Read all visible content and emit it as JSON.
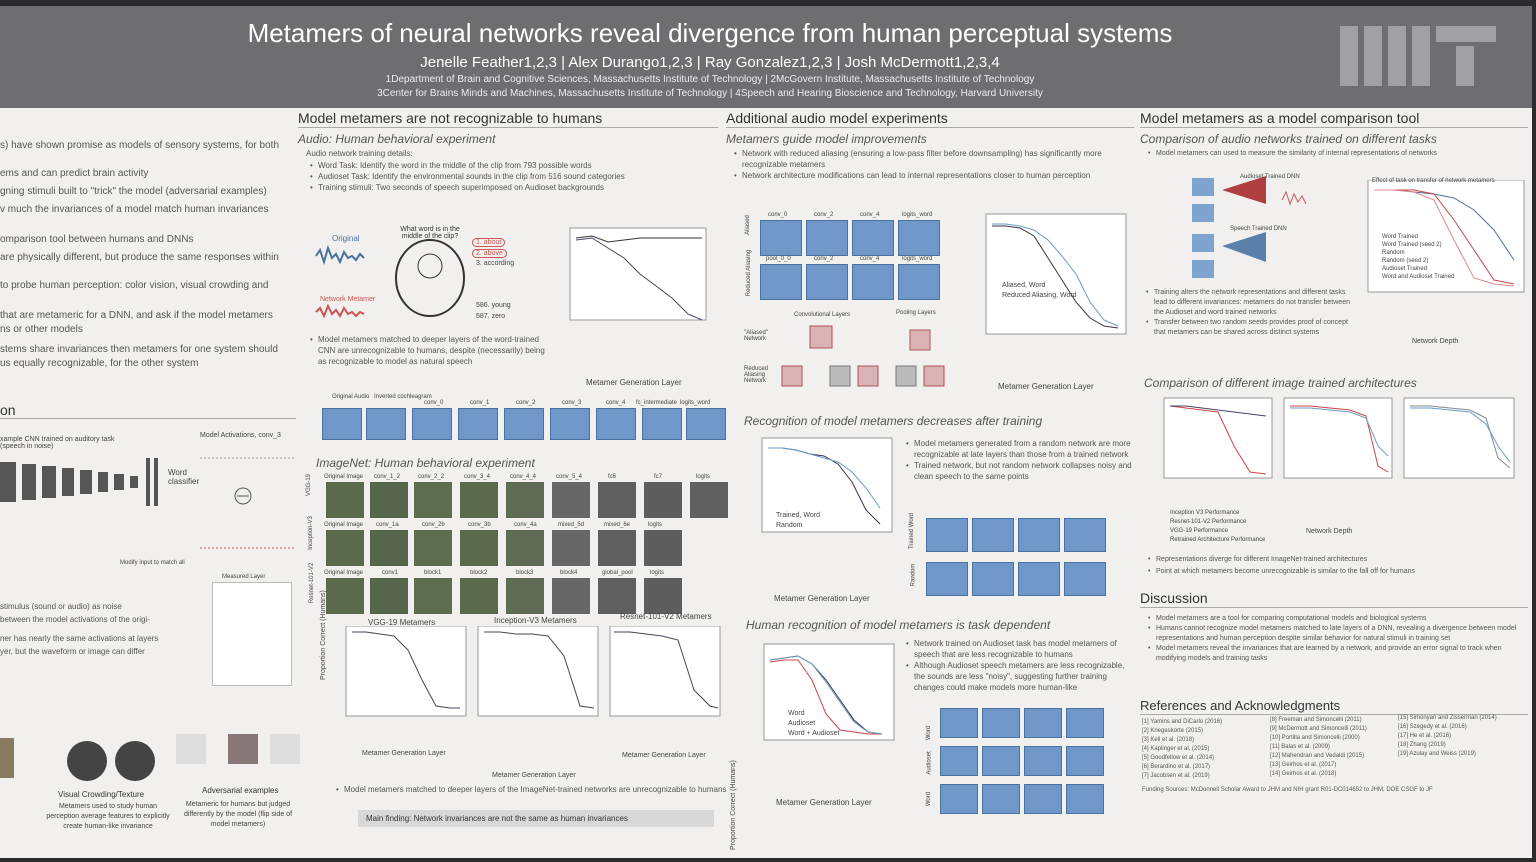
{
  "header": {
    "title": "Metamers of neural networks reveal divergence from human perceptual systems",
    "authors": "Jenelle Feather1,2,3 | Alex Durango1,2,3 | Ray Gonzalez1,2,3 | Josh McDermott1,2,3,4",
    "affil_1": "1Department of Brain and Cognitive Sciences, Massachusetts Institute of Technology | 2McGovern Institute, Massachusetts Institute of Technology",
    "affil_2": "3Center for Brains Minds and Machines, Massachusetts Institute of Technology | 4Speech and Hearing Bioscience and Technology, Harvard University"
  },
  "col1": {
    "intro": [
      "s) have shown promise as models of sensory systems, for both",
      "ems and can predict brain activity",
      "gning stimuli built to \"trick\" the model (adversarial examples)",
      "v much the invariances of a model match human invariances",
      "omparison tool between humans and DNNs",
      "are physically different, but produce the same responses within",
      "to probe human perception: color vision, visual crowding and",
      "that are metameric for a DNN, and ask if the model metamers",
      "ns or other models",
      "stems share invariances then metamers for one system should",
      "us equally recognizable, for the other system"
    ],
    "section": "on",
    "diagram_caption": "xample CNN trained on auditory task (speech in noise)",
    "model_activations": "Model Activations, conv_3",
    "word_classifier": "Word classifier",
    "modify_input": "Modify input to match all",
    "measured_layer": "Measured Layer",
    "method_text": [
      "stimulus (sound or audio) as noise",
      "between the model activations of the origi-",
      "ner has nearly the same activations at layers",
      "yer, but the waveform or image can differ"
    ],
    "bottom_titles": [
      "Visual Crowding/Texture",
      "Adversarial examples"
    ],
    "bottom_texts": [
      "Metamers used to study human perception average features to explicitly create human-like invariance",
      "Metameric for humans but judged differently by the model (flip side of model metamers)"
    ]
  },
  "col2": {
    "heading": "Model metamers are not recognizable to humans",
    "audio_sub": "Audio: Human behavioral experiment",
    "training_label": "Audio network training details:",
    "training_bullets": [
      "Word Task: Identify the word in the middle of the clip from 793 possible words",
      "Audioset Task: Identify the environmental sounds in the clip from 516 sound categories",
      "Training stimuli: Two seconds of speech superimposed on Audioset backgrounds"
    ],
    "original": "Original",
    "network_metamer": "Network Metamer",
    "question": "What word is in the middle of the clip?",
    "choices": [
      "1. about",
      "2. above",
      "3. according",
      "586. young",
      "587. zero"
    ],
    "audio_result": "Model metamers matched to deeper layers of the word-trained CNN are unrecognizable to humans, despite (necessarily) being as recognizable to model as natural speech",
    "audio_layers": [
      "Original Audio",
      "Inverted cochleagram",
      "conv_0",
      "conv_1",
      "conv_2",
      "conv_3",
      "conv_4",
      "fc_intermediate",
      "logits_word"
    ],
    "imagenet_sub": "ImageNet: Human behavioral experiment",
    "net_labels": [
      "VGG-19",
      "Inception-V3",
      "Resnet-101-V2"
    ],
    "vgg_layers": [
      "Original Image",
      "conv_1_2",
      "conv_2_2",
      "conv_3_4",
      "conv_4_4",
      "conv_5_4",
      "fc6",
      "fc7",
      "logits"
    ],
    "inc_layers": [
      "Original Image",
      "conv_1a",
      "conv_2b",
      "conv_3b",
      "conv_4a",
      "mixed_5d",
      "mixed_6e",
      "logits"
    ],
    "res_layers": [
      "Original Image",
      "conv1",
      "block1",
      "block2",
      "block3",
      "block4",
      "global_pool",
      "logits"
    ],
    "plot_titles": [
      "VGG-19 Metamers",
      "Inception-V3 Metamers",
      "Resnet-101-V2 Metamers"
    ],
    "ylabel": "Proportion Correct (Humans)",
    "xlabel": "Metamer Generation Layer",
    "image_result": "Model metamers matched to deeper layers of the ImageNet-trained networks are unrecognizable to humans",
    "main_finding": "Main finding: Network invariances are not the same as human invariances"
  },
  "col3": {
    "heading": "Additional audio model experiments",
    "sub1": "Metamers guide model improvements",
    "bullets1": [
      "Network with reduced aliasing (ensuring a low-pass filter before downsampling) has significantly more recognizable metamers",
      "Network architecture modifications can lead to internal representations closer to human perception"
    ],
    "aliased_rows": [
      "Aliased",
      "Reduced Aliasing"
    ],
    "aliased_cols": [
      "conv_0",
      "conv_2",
      "conv_4",
      "logits_word"
    ],
    "pool_cols": [
      "pool_0_0",
      "conv_2",
      "conv_4",
      "logits_word"
    ],
    "conv_layers": "Convolutional Layers",
    "pooling_layers": "Pooling Layers",
    "aliased_net": "\"Aliased\" Network",
    "reduced_net": "Reduced Aliasing Network",
    "legend1": [
      "Aliased, Word",
      "Reduced Aliasing, Word"
    ],
    "sub2": "Recognition of model metamers decreases after training",
    "bullets2": [
      "Model metamers generated from a random network are more recognizable at late layers than those from a trained network",
      "Trained network, but not random network collapses noisy and clean speech to the same points"
    ],
    "legend2": [
      "Trained, Word",
      "Random"
    ],
    "row_labels2": [
      "Trained Word",
      "Random"
    ],
    "sub3": "Human recognition of model metamers is task dependent",
    "bullets3": [
      "Network trained on Audioset task has model metamers of speech that are less recognizable to humans",
      "Although Audioset speech metamers are less recognizable, the sounds are less \"noisy\", suggesting further training changes could make models more human-like"
    ],
    "legend3": [
      "Word",
      "Audioset",
      "Word + Audioset"
    ],
    "row_labels3": [
      "Word",
      "Audioset",
      "Word"
    ],
    "xlabel": "Metamer Generation Layer",
    "ylabel": "Proportion Correct (Humans)"
  },
  "col4": {
    "heading": "Model metamers as a model comparison tool",
    "sub1": "Comparison of audio networks trained on different tasks",
    "bullet1": "Model metamers can used to measure the similarity of internal representations of networks",
    "audioset_dnn": "Audioset Trained DNN",
    "speech_dnn": "Speech Trained DNN",
    "effect_title": "Effect of task on transfer of network metamers",
    "legend_a": [
      "Word Trained",
      "Word Trained (seed 2)",
      "Random",
      "Random (seed 2)",
      "Audioset Trained",
      "Word and Audioset Trained"
    ],
    "bullets2": [
      "Training alters the network representations and different tasks lead to different invariances: metamers do not transfer between the Audioset and word trained networks",
      "Transfer between two random seeds provides proof of concept that metamers can be shared across distinct systems"
    ],
    "network_depth": "Network Depth",
    "sub2": "Comparison of different image trained architectures",
    "legend_b": [
      "Inception V3 Performance",
      "Resnet-101-V2 Performance",
      "VGG-19 Performance",
      "Retrained Architecture Performance"
    ],
    "bullets3": [
      "Representations diverge for different ImageNet-trained architectures",
      "Point at which metamers become unrecognizable is similar to the fall off for humans"
    ],
    "discussion": "Discussion",
    "disc_bullets": [
      "Model metamers are a tool for comparing computational models and biological systems",
      "Humans cannot recognize model metamers matched to late layers of a DNN, revealing a divergence between model representations and human perception despite similar behavior for natural stimuli in training set",
      "Model metamers reveal the invariances that are learned by a network, and provide an error signal to track when modifying models and training tasks"
    ],
    "refs_heading": "References and Acknowledgments",
    "refs": [
      "[1] Yamins and DiCarlo (2016)",
      "[2] Kriegeskorte (2015)",
      "[3] Kell et al. (2018)",
      "[4] Kaplinger et al. (2015)",
      "[5] Goodfellow et al. (2014)",
      "[6] Berardino et al. (2017)",
      "[7] Jacobsen et al. (2019)",
      "[8] Freeman and Simoncelli (2011)",
      "[9] McDermott and Simoncelli (2011)",
      "[10] Portilla and Simoncelli (2000)",
      "[11] Balas et al. (2009)",
      "[12] Mahendran and Vedaldi (2015)",
      "[13] Geirhos et al. (2017)",
      "[14] Geirhos et al. (2018)",
      "[15] Simonyan and Zisserman (2014)",
      "[16] Szegedy et al. (2016)",
      "[17] He et al. (2016)",
      "[18] Zhang (2019)",
      "[19] Azulay and Weiss (2019)"
    ],
    "funding": "Funding Sources: McDonnell Scholar Award to JHM and NIH grant R01-DC014652 to JHM, DOE CSGF to JF"
  }
}
